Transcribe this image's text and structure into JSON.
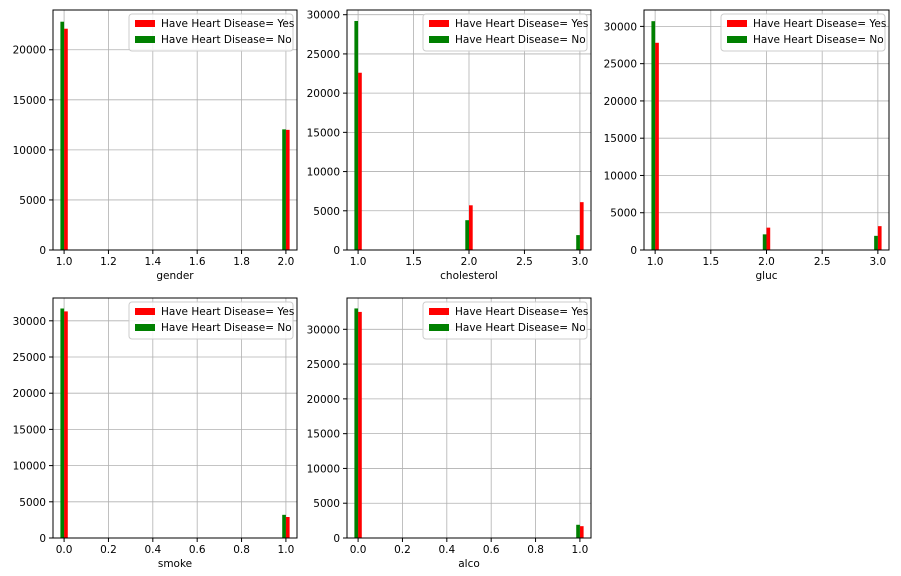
{
  "colors": {
    "yes": "#ff0000",
    "no": "#008000",
    "grid": "#b0b0b0",
    "frame": "#000000",
    "legend_border": "#cccccc"
  },
  "legend_labels": {
    "yes": "Have Heart Disease= Yes",
    "no": "Have Heart Disease= No"
  },
  "chart_data": [
    {
      "type": "bar",
      "xlabel": "gender",
      "xlim": [
        0.95,
        2.05
      ],
      "ylim": [
        0,
        23970
      ],
      "xticks": [
        1.0,
        1.2,
        1.4,
        1.6,
        1.8,
        2.0
      ],
      "xtick_labels": [
        "1.0",
        "1.2",
        "1.4",
        "1.6",
        "1.8",
        "2.0"
      ],
      "yticks": [
        0,
        5000,
        10000,
        15000,
        20000
      ],
      "ytick_labels": [
        "0",
        "5000",
        "10000",
        "15000",
        "20000"
      ],
      "grid": true,
      "legend": "top-right",
      "bin_width": 0.0333,
      "series": [
        {
          "name": "Have Heart Disease= Yes",
          "points": [
            {
              "x": 1.0,
              "value": 22100
            },
            {
              "x": 2.0,
              "value": 12000
            }
          ]
        },
        {
          "name": "Have Heart Disease= No",
          "points": [
            {
              "x": 1.0,
              "value": 22800
            },
            {
              "x": 2.0,
              "value": 12050
            }
          ]
        }
      ]
    },
    {
      "type": "bar",
      "xlabel": "cholesterol",
      "xlim": [
        0.9,
        3.1
      ],
      "ylim": [
        0,
        30600
      ],
      "xticks": [
        1.0,
        1.5,
        2.0,
        2.5,
        3.0
      ],
      "xtick_labels": [
        "1.0",
        "1.5",
        "2.0",
        "2.5",
        "3.0"
      ],
      "yticks": [
        0,
        5000,
        10000,
        15000,
        20000,
        25000,
        30000
      ],
      "ytick_labels": [
        "0",
        "5000",
        "10000",
        "15000",
        "20000",
        "25000",
        "30000"
      ],
      "grid": true,
      "legend": "top-right",
      "bin_width": 0.0667,
      "series": [
        {
          "name": "Have Heart Disease= Yes",
          "points": [
            {
              "x": 1.0,
              "value": 22600
            },
            {
              "x": 2.0,
              "value": 5700
            },
            {
              "x": 3.0,
              "value": 6100
            }
          ]
        },
        {
          "name": "Have Heart Disease= No",
          "points": [
            {
              "x": 1.0,
              "value": 29200
            },
            {
              "x": 2.0,
              "value": 3800
            },
            {
              "x": 3.0,
              "value": 1900
            }
          ]
        }
      ]
    },
    {
      "type": "bar",
      "xlabel": "gluc",
      "xlim": [
        0.9,
        3.1
      ],
      "ylim": [
        0,
        32200
      ],
      "xticks": [
        1.0,
        1.5,
        2.0,
        2.5,
        3.0
      ],
      "xtick_labels": [
        "1.0",
        "1.5",
        "2.0",
        "2.5",
        "3.0"
      ],
      "yticks": [
        0,
        5000,
        10000,
        15000,
        20000,
        25000,
        30000
      ],
      "ytick_labels": [
        "0",
        "5000",
        "10000",
        "15000",
        "20000",
        "25000",
        "30000"
      ],
      "grid": true,
      "legend": "top-right",
      "bin_width": 0.0667,
      "series": [
        {
          "name": "Have Heart Disease= Yes",
          "points": [
            {
              "x": 1.0,
              "value": 27800
            },
            {
              "x": 2.0,
              "value": 3000
            },
            {
              "x": 3.0,
              "value": 3200
            }
          ]
        },
        {
          "name": "Have Heart Disease= No",
          "points": [
            {
              "x": 1.0,
              "value": 30700
            },
            {
              "x": 2.0,
              "value": 2100
            },
            {
              "x": 3.0,
              "value": 1900
            }
          ]
        }
      ]
    },
    {
      "type": "bar",
      "xlabel": "smoke",
      "xlim": [
        -0.05,
        1.05
      ],
      "ylim": [
        0,
        33150
      ],
      "xticks": [
        0.0,
        0.2,
        0.4,
        0.6,
        0.8,
        1.0
      ],
      "xtick_labels": [
        "0.0",
        "0.2",
        "0.4",
        "0.6",
        "0.8",
        "1.0"
      ],
      "yticks": [
        0,
        5000,
        10000,
        15000,
        20000,
        25000,
        30000
      ],
      "ytick_labels": [
        "0",
        "5000",
        "10000",
        "15000",
        "20000",
        "25000",
        "30000"
      ],
      "grid": true,
      "legend": "top-right",
      "bin_width": 0.0333,
      "series": [
        {
          "name": "Have Heart Disease= Yes",
          "points": [
            {
              "x": 0.0,
              "value": 31300
            },
            {
              "x": 1.0,
              "value": 2900
            }
          ]
        },
        {
          "name": "Have Heart Disease= No",
          "points": [
            {
              "x": 0.0,
              "value": 31700
            },
            {
              "x": 1.0,
              "value": 3200
            }
          ]
        }
      ]
    },
    {
      "type": "bar",
      "xlabel": "alco",
      "xlim": [
        -0.05,
        1.05
      ],
      "ylim": [
        0,
        34500
      ],
      "xticks": [
        0.0,
        0.2,
        0.4,
        0.6,
        0.8,
        1.0
      ],
      "xtick_labels": [
        "0.0",
        "0.2",
        "0.4",
        "0.6",
        "0.8",
        "1.0"
      ],
      "yticks": [
        0,
        5000,
        10000,
        15000,
        20000,
        25000,
        30000
      ],
      "ytick_labels": [
        "0",
        "5000",
        "10000",
        "15000",
        "20000",
        "25000",
        "30000"
      ],
      "grid": true,
      "legend": "top-right",
      "bin_width": 0.0333,
      "series": [
        {
          "name": "Have Heart Disease= Yes",
          "points": [
            {
              "x": 0.0,
              "value": 32500
            },
            {
              "x": 1.0,
              "value": 1700
            }
          ]
        },
        {
          "name": "Have Heart Disease= No",
          "points": [
            {
              "x": 0.0,
              "value": 33000
            },
            {
              "x": 1.0,
              "value": 1900
            }
          ]
        }
      ]
    }
  ]
}
